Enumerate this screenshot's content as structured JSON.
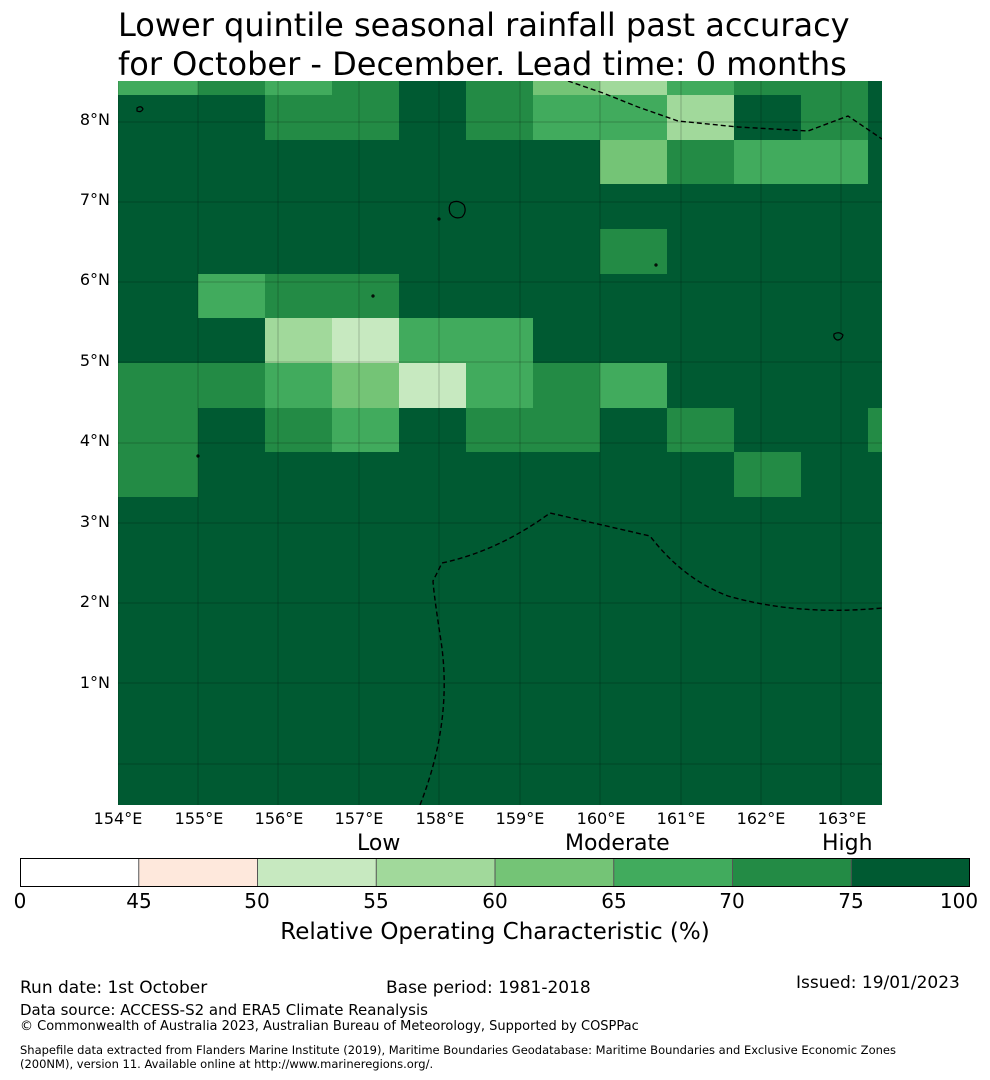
{
  "title": {
    "line1": "Lower quintile seasonal rainfall past accuracy",
    "line2": "for October - December. Lead time: 0 months"
  },
  "map": {
    "lon_range": [
      154,
      163.5
    ],
    "lat_range": [
      -0.5,
      8.5
    ],
    "lat_ticks": [
      "8°N",
      "7°N",
      "6°N",
      "5°N",
      "4°N",
      "3°N",
      "2°N",
      "1°N"
    ],
    "lon_ticks": [
      "154°E",
      "155°E",
      "156°E",
      "157°E",
      "158°E",
      "159°E",
      "160°E",
      "161°E",
      "162°E",
      "163°E"
    ],
    "colors": {
      "c45": "#fee8dc",
      "c50": "#c7e9c0",
      "c55": "#a1d99b",
      "c60": "#74c476",
      "c65": "#41ab5d",
      "c70": "#238b45",
      "c75": "#005a32"
    }
  },
  "colorbar": {
    "categories": [
      "Low",
      "Moderate",
      "High"
    ],
    "ticks": [
      "0",
      "45",
      "50",
      "55",
      "60",
      "65",
      "70",
      "75",
      "100"
    ],
    "colors": [
      "#ffffff",
      "#fee8dc",
      "#c7e9c0",
      "#a1d99b",
      "#74c476",
      "#41ab5d",
      "#238b45",
      "#005a32"
    ],
    "label": "Relative Operating Characteristic (%)"
  },
  "footer": {
    "run_date": "Run date: 1st October",
    "base_period": "Base period: 1981-2018",
    "issued": "Issued: 19/01/2023",
    "data_source": "Data source: ACCESS-S2 and ERA5 Climate Reanalysis",
    "copyright": "© Commonwealth of Australia 2023, Australian Bureau of Meteorology, Supported by COSPPac",
    "shapefile_line1": "Shapefile data extracted from Flanders Marine Institute (2019), Maritime Boundaries Geodatabase: Maritime Boundaries and Exclusive Economic Zones",
    "shapefile_line2": "(200NM), version 11. Available online at http://www.marineregions.org/."
  }
}
